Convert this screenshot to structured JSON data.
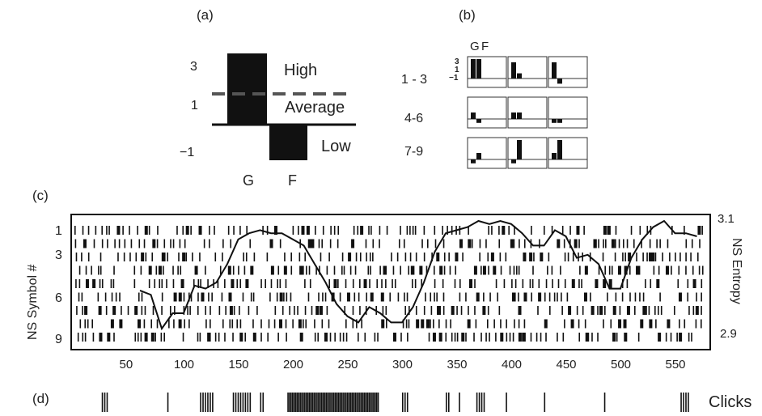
{
  "panel_a": {
    "label": "(a)",
    "y_ticks": [
      "3",
      "1",
      "−1"
    ],
    "x_labels": [
      "G",
      "F"
    ],
    "region_labels": [
      "High",
      "Average",
      "Low"
    ],
    "chart_data": {
      "type": "bar",
      "categories": [
        "G",
        "F"
      ],
      "values": [
        3,
        -1
      ],
      "baseline": 0,
      "average_level": 1.5,
      "ylim": [
        -1.5,
        3.5
      ]
    }
  },
  "panel_b": {
    "label": "(b)",
    "header_labels": [
      "G",
      "F"
    ],
    "y_ticks": [
      "3",
      "1",
      "−1"
    ],
    "row_labels": [
      "1 - 3",
      "4-6",
      "7-9"
    ],
    "chart_data": {
      "type": "bar",
      "note_symbols": "small multiples, 9 symbols, each G/F pair",
      "symbols": [
        {
          "id": 1,
          "G": 3,
          "F": 3
        },
        {
          "id": 2,
          "G": 2.5,
          "F": 0.8
        },
        {
          "id": 3,
          "G": 2.5,
          "F": -0.8
        },
        {
          "id": 4,
          "G": 1,
          "F": -0.6
        },
        {
          "id": 5,
          "G": 1,
          "F": 1
        },
        {
          "id": 6,
          "G": -0.6,
          "F": -0.6
        },
        {
          "id": 7,
          "G": -0.6,
          "F": 1
        },
        {
          "id": 8,
          "G": -0.6,
          "F": 3
        },
        {
          "id": 9,
          "G": 1,
          "F": 3
        }
      ]
    }
  },
  "panel_c": {
    "label": "(c)",
    "y_label": "NS Symbol #",
    "y_ticks": [
      "1",
      "3",
      "6",
      "9"
    ],
    "x_ticks": [
      "50",
      "100",
      "150",
      "200",
      "250",
      "300",
      "350",
      "400",
      "450",
      "500",
      "550"
    ],
    "right_label": "NS Entropy",
    "right_ticks": [
      "3.1",
      "2.9"
    ],
    "chart_data": {
      "type": "line",
      "x_range": [
        0,
        585
      ],
      "entropy_range": [
        2.9,
        3.1
      ],
      "series": [
        {
          "x": [
            60,
            70,
            80,
            90,
            100,
            110,
            120,
            130,
            140,
            150,
            160,
            170,
            180,
            190,
            200,
            210,
            220,
            230,
            240,
            250,
            260,
            270,
            280,
            290,
            300,
            310,
            320,
            330,
            340,
            350,
            360,
            370,
            380,
            390,
            400,
            410,
            420,
            430,
            440,
            450,
            460,
            470,
            480,
            490,
            500,
            510,
            520,
            530,
            540,
            550,
            560,
            570
          ],
          "y": [
            2.987,
            2.98,
            2.925,
            2.95,
            2.95,
            2.995,
            2.99,
            3.0,
            3.03,
            3.07,
            3.08,
            3.085,
            3.08,
            3.08,
            3.07,
            3.06,
            3.03,
            3.0,
            2.965,
            2.945,
            2.935,
            2.96,
            2.95,
            2.935,
            2.935,
            2.96,
            3.0,
            3.05,
            3.08,
            3.085,
            3.09,
            3.1,
            3.095,
            3.1,
            3.095,
            3.08,
            3.06,
            3.06,
            3.085,
            3.075,
            3.04,
            3.045,
            3.03,
            2.99,
            2.99,
            3.04,
            3.07,
            3.09,
            3.1,
            3.08,
            3.08,
            3.075
          ]
        }
      ],
      "raster_rows": [
        1,
        2,
        3,
        4,
        5,
        6,
        7,
        8,
        9
      ]
    }
  },
  "panel_d": {
    "label": "(d)",
    "right_label": "Clicks"
  }
}
